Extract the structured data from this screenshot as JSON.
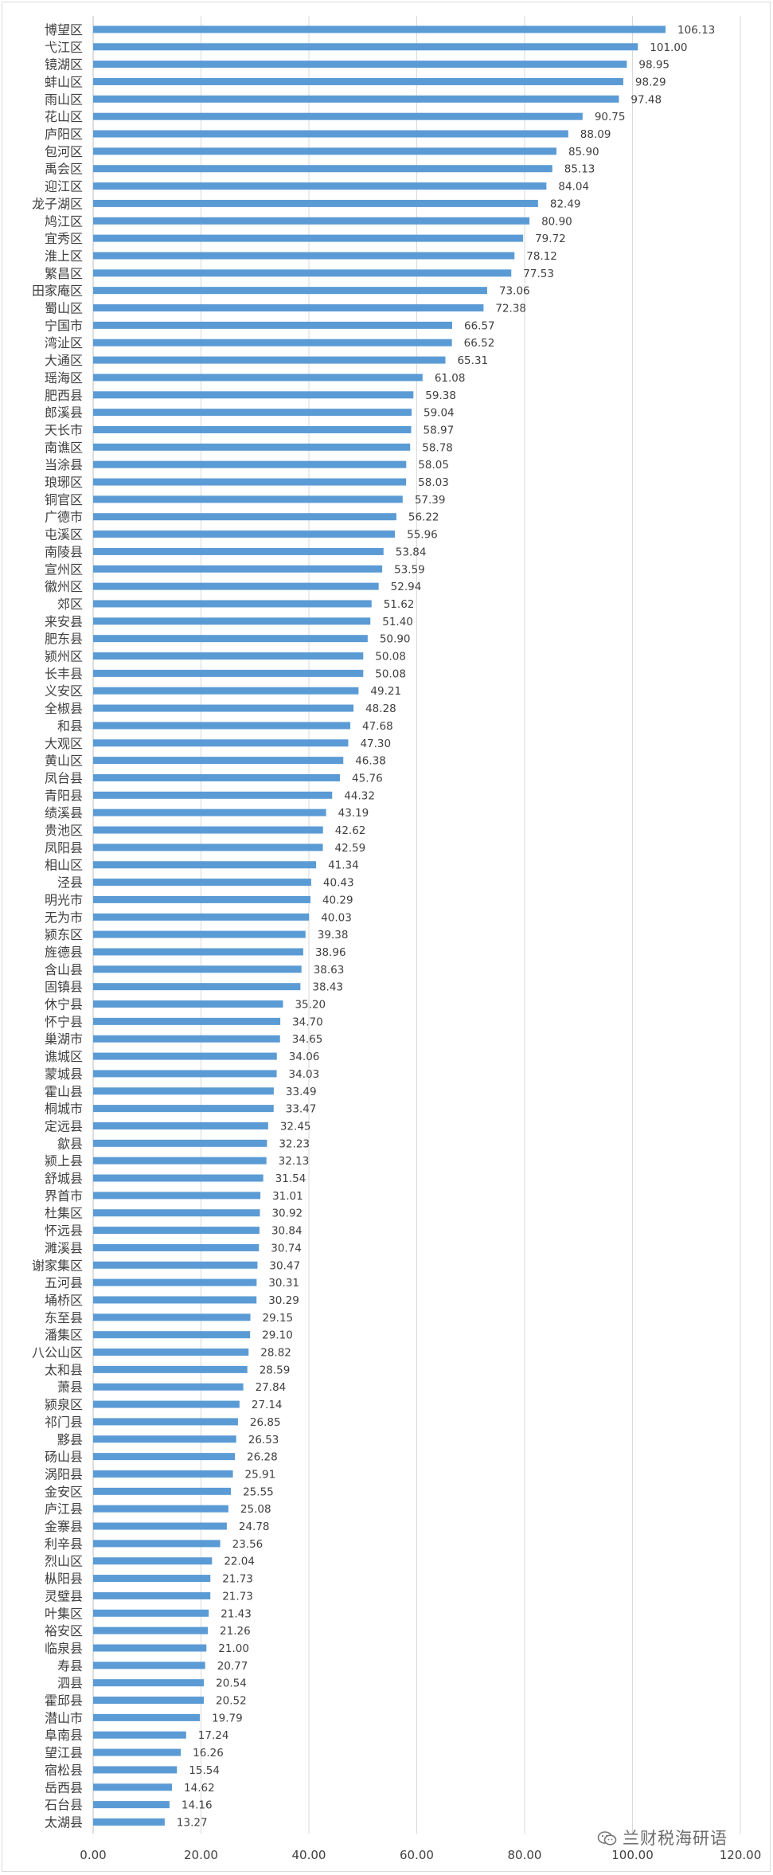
{
  "chart_data": {
    "type": "bar",
    "orientation": "horizontal",
    "title": "",
    "xlabel": "",
    "ylabel": "",
    "xlim": [
      0,
      120
    ],
    "ticks": [
      "0.00",
      "20.00",
      "40.00",
      "60.00",
      "80.00",
      "100.00",
      "120.00"
    ],
    "grid": true,
    "legend": "none",
    "bar_color": "#5b9bd5",
    "categories": [
      "博望区",
      "弋江区",
      "镜湖区",
      "蚌山区",
      "雨山区",
      "花山区",
      "庐阳区",
      "包河区",
      "禹会区",
      "迎江区",
      "龙子湖区",
      "鸠江区",
      "宜秀区",
      "淮上区",
      "繁昌区",
      "田家庵区",
      "蜀山区",
      "宁国市",
      "湾沚区",
      "大通区",
      "瑶海区",
      "肥西县",
      "郎溪县",
      "天长市",
      "南谯区",
      "当涂县",
      "琅琊区",
      "铜官区",
      "广德市",
      "屯溪区",
      "南陵县",
      "宣州区",
      "徽州区",
      "郊区",
      "来安县",
      "肥东县",
      "颍州区",
      "长丰县",
      "义安区",
      "全椒县",
      "和县",
      "大观区",
      "黄山区",
      "凤台县",
      "青阳县",
      "绩溪县",
      "贵池区",
      "凤阳县",
      "相山区",
      "泾县",
      "明光市",
      "无为市",
      "颍东区",
      "旌德县",
      "含山县",
      "固镇县",
      "休宁县",
      "怀宁县",
      "巢湖市",
      "谯城区",
      "蒙城县",
      "霍山县",
      "桐城市",
      "定远县",
      "歙县",
      "颍上县",
      "舒城县",
      "界首市",
      "杜集区",
      "怀远县",
      "濉溪县",
      "谢家集区",
      "五河县",
      "埇桥区",
      "东至县",
      "潘集区",
      "八公山区",
      "太和县",
      "萧县",
      "颍泉区",
      "祁门县",
      "黟县",
      "砀山县",
      "涡阳县",
      "金安区",
      "庐江县",
      "金寨县",
      "利辛县",
      "烈山区",
      "枞阳县",
      "灵璧县",
      "叶集区",
      "裕安区",
      "临泉县",
      "寿县",
      "泗县",
      "霍邱县",
      "潜山市",
      "阜南县",
      "望江县",
      "宿松县",
      "岳西县",
      "石台县",
      "太湖县"
    ],
    "values": [
      106.13,
      101.0,
      98.95,
      98.29,
      97.48,
      90.75,
      88.09,
      85.9,
      85.13,
      84.04,
      82.49,
      80.9,
      79.72,
      78.12,
      77.53,
      73.06,
      72.38,
      66.57,
      66.52,
      65.31,
      61.08,
      59.38,
      59.04,
      58.97,
      58.78,
      58.05,
      58.03,
      57.39,
      56.22,
      55.96,
      53.84,
      53.59,
      52.94,
      51.62,
      51.4,
      50.9,
      50.08,
      50.08,
      49.21,
      48.28,
      47.68,
      47.3,
      46.38,
      45.76,
      44.32,
      43.19,
      42.62,
      42.59,
      41.34,
      40.43,
      40.29,
      40.03,
      39.38,
      38.96,
      38.63,
      38.43,
      35.2,
      34.7,
      34.65,
      34.06,
      34.03,
      33.49,
      33.47,
      32.45,
      32.23,
      32.13,
      31.54,
      31.01,
      30.92,
      30.84,
      30.74,
      30.47,
      30.31,
      30.29,
      29.15,
      29.1,
      28.82,
      28.59,
      27.84,
      27.14,
      26.85,
      26.53,
      26.28,
      25.91,
      25.55,
      25.08,
      24.78,
      23.56,
      22.04,
      21.73,
      21.73,
      21.43,
      21.26,
      21.0,
      20.77,
      20.54,
      20.52,
      19.79,
      17.24,
      16.26,
      15.54,
      14.62,
      14.16,
      13.27
    ],
    "value_labels": [
      "106.13",
      "101.00",
      "98.95",
      "98.29",
      "97.48",
      "90.75",
      "88.09",
      "85.90",
      "85.13",
      "84.04",
      "82.49",
      "80.90",
      "79.72",
      "78.12",
      "77.53",
      "73.06",
      "72.38",
      "66.57",
      "66.52",
      "65.31",
      "61.08",
      "59.38",
      "59.04",
      "58.97",
      "58.78",
      "58.05",
      "58.03",
      "57.39",
      "56.22",
      "55.96",
      "53.84",
      "53.59",
      "52.94",
      "51.62",
      "51.40",
      "50.90",
      "50.08",
      "50.08",
      "49.21",
      "48.28",
      "47.68",
      "47.30",
      "46.38",
      "45.76",
      "44.32",
      "43.19",
      "42.62",
      "42.59",
      "41.34",
      "40.43",
      "40.29",
      "40.03",
      "39.38",
      "38.96",
      "38.63",
      "38.43",
      "35.20",
      "34.70",
      "34.65",
      "34.06",
      "34.03",
      "33.49",
      "33.47",
      "32.45",
      "32.23",
      "32.13",
      "31.54",
      "31.01",
      "30.92",
      "30.84",
      "30.74",
      "30.47",
      "30.31",
      "30.29",
      "29.15",
      "29.10",
      "28.82",
      "28.59",
      "27.84",
      "27.14",
      "26.85",
      "26.53",
      "26.28",
      "25.91",
      "25.55",
      "25.08",
      "24.78",
      "23.56",
      "22.04",
      "21.73",
      "21.73",
      "21.43",
      "21.26",
      "21.00",
      "20.77",
      "20.54",
      "20.52",
      "19.79",
      "17.24",
      "16.26",
      "15.54",
      "14.62",
      "14.16",
      "13.27"
    ]
  },
  "watermark": {
    "text": "兰财税海研语",
    "icon": "wechat-icon"
  }
}
